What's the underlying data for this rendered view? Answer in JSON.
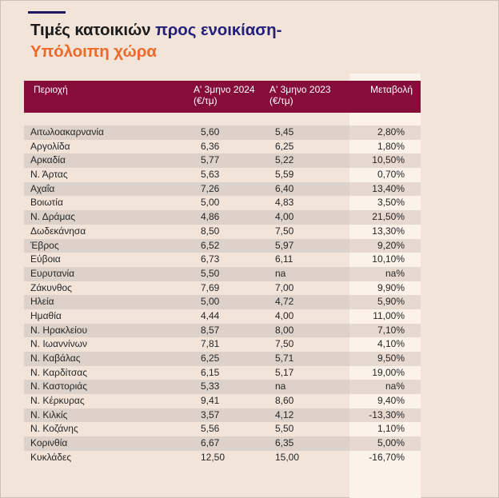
{
  "title": {
    "part1": "Τιμές κατοικιών ",
    "part2": "προς ενοικίαση-",
    "part3": "Υπόλοιπη χώρα"
  },
  "table": {
    "headers": {
      "region": "Περιοχή",
      "y2024_line1": "Α' 3μηνο 2024",
      "y2024_line2": "(€/τμ)",
      "y2023_line1": "Α' 3μηνο 2023",
      "y2023_line2": "(€/τμ)",
      "change": "Μεταβολή"
    },
    "rows": [
      {
        "region": "Αιτωλοακαρνανία",
        "y2024": "5,60",
        "y2023": "5,45",
        "change": "2,80%"
      },
      {
        "region": "Αργολίδα",
        "y2024": "6,36",
        "y2023": "6,25",
        "change": "1,80%"
      },
      {
        "region": "Αρκαδία",
        "y2024": "5,77",
        "y2023": "5,22",
        "change": "10,50%"
      },
      {
        "region": "Ν. Άρτας",
        "y2024": "5,63",
        "y2023": "5,59",
        "change": "0,70%"
      },
      {
        "region": "Αχαΐα",
        "y2024": "7,26",
        "y2023": "6,40",
        "change": "13,40%"
      },
      {
        "region": "Βοιωτία",
        "y2024": "5,00",
        "y2023": "4,83",
        "change": "3,50%"
      },
      {
        "region": "Ν. Δράμας",
        "y2024": "4,86",
        "y2023": "4,00",
        "change": "21,50%"
      },
      {
        "region": "Δωδεκάνησα",
        "y2024": "8,50",
        "y2023": "7,50",
        "change": "13,30%"
      },
      {
        "region": "Έβρος",
        "y2024": "6,52",
        "y2023": "5,97",
        "change": "9,20%"
      },
      {
        "region": "Εύβοια",
        "y2024": "6,73",
        "y2023": "6,11",
        "change": "10,10%"
      },
      {
        "region": "Ευρυτανία",
        "y2024": "5,50",
        "y2023": "na",
        "change": "na%"
      },
      {
        "region": "Ζάκυνθος",
        "y2024": "7,69",
        "y2023": "7,00",
        "change": "9,90%"
      },
      {
        "region": "Ηλεία",
        "y2024": "5,00",
        "y2023": "4,72",
        "change": "5,90%"
      },
      {
        "region": "Ημαθία",
        "y2024": "4,44",
        "y2023": "4,00",
        "change": "11,00%"
      },
      {
        "region": "Ν. Ηρακλείου",
        "y2024": "8,57",
        "y2023": "8,00",
        "change": "7,10%"
      },
      {
        "region": "Ν. Ιωαννίνων",
        "y2024": "7,81",
        "y2023": "7,50",
        "change": "4,10%"
      },
      {
        "region": "Ν. Καβάλας",
        "y2024": "6,25",
        "y2023": "5,71",
        "change": "9,50%"
      },
      {
        "region": "Ν. Καρδίτσας",
        "y2024": "6,15",
        "y2023": "5,17",
        "change": "19,00%"
      },
      {
        "region": "Ν. Καστοριάς",
        "y2024": "5,33",
        "y2023": "na",
        "change": "na%"
      },
      {
        "region": "Ν. Κέρκυρας",
        "y2024": "9,41",
        "y2023": "8,60",
        "change": "9,40%"
      },
      {
        "region": "Ν. Κιλκίς",
        "y2024": "3,57",
        "y2023": "4,12",
        "change": "-13,30%"
      },
      {
        "region": "Ν. Κοζάνης",
        "y2024": "5,56",
        "y2023": "5,50",
        "change": "1,10%"
      },
      {
        "region": "Κορινθία",
        "y2024": "6,67",
        "y2023": "6,35",
        "change": "5,00%"
      },
      {
        "region": "Κυκλάδες",
        "y2024": "12,50",
        "y2023": "15,00",
        "change": "-16,70%"
      }
    ]
  }
}
